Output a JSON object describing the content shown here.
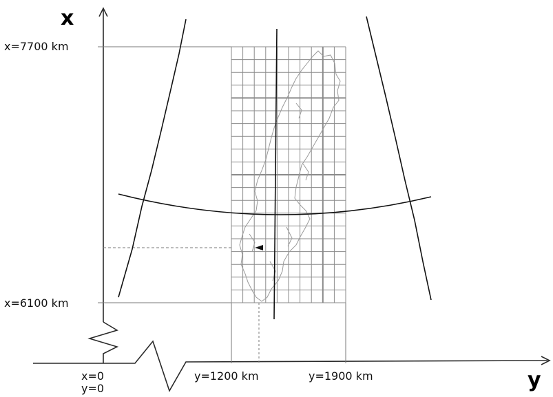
{
  "axes": {
    "vertical_label": "x",
    "horizontal_label": "y"
  },
  "ticks": {
    "x_top": "x=7700 km",
    "x_bottom": "x=6100 km",
    "origin_x": "x=0",
    "origin_y": "y=0",
    "y_left": "y=1200 km",
    "y_right": "y=1900 km"
  },
  "colors": {
    "axis": "#2a2a2a",
    "grid": "#8a8a8a",
    "coastline": "#9a9a9a",
    "projection_lines": "#111111"
  }
}
